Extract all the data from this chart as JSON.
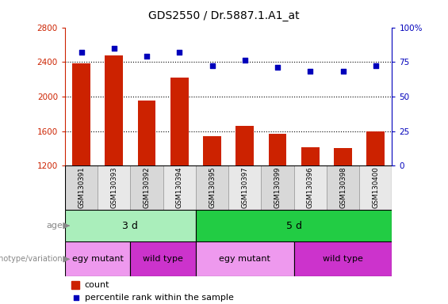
{
  "title": "GDS2550 / Dr.5887.1.A1_at",
  "samples": [
    "GSM130391",
    "GSM130393",
    "GSM130392",
    "GSM130394",
    "GSM130395",
    "GSM130397",
    "GSM130399",
    "GSM130396",
    "GSM130398",
    "GSM130400"
  ],
  "counts": [
    2380,
    2480,
    1950,
    2220,
    1545,
    1665,
    1565,
    1415,
    1400,
    1595
  ],
  "percentiles": [
    82,
    85,
    79,
    82,
    72,
    76,
    71,
    68,
    68,
    72
  ],
  "ylim_left": [
    1200,
    2800
  ],
  "ylim_right": [
    0,
    100
  ],
  "yticks_left": [
    1200,
    1600,
    2000,
    2400,
    2800
  ],
  "yticks_right": [
    0,
    25,
    50,
    75,
    100
  ],
  "bar_color": "#CC2200",
  "scatter_color": "#0000BB",
  "age_groups": [
    {
      "label": "3 d",
      "start": 0,
      "end": 4,
      "color": "#AAEEBB"
    },
    {
      "label": "5 d",
      "start": 4,
      "end": 10,
      "color": "#22CC44"
    }
  ],
  "genotype_groups": [
    {
      "label": "egy mutant",
      "start": 0,
      "end": 2,
      "color": "#EE99EE"
    },
    {
      "label": "wild type",
      "start": 2,
      "end": 4,
      "color": "#CC33CC"
    },
    {
      "label": "egy mutant",
      "start": 4,
      "end": 7,
      "color": "#EE99EE"
    },
    {
      "label": "wild type",
      "start": 7,
      "end": 10,
      "color": "#CC33CC"
    }
  ],
  "bar_color_legend": "#CC2200",
  "scatter_color_legend": "#0000BB",
  "left_tick_color": "#CC2200",
  "right_tick_color": "#0000BB",
  "label_color": "#888888",
  "background_color": "#FFFFFF",
  "tick_label_color": "#333333"
}
